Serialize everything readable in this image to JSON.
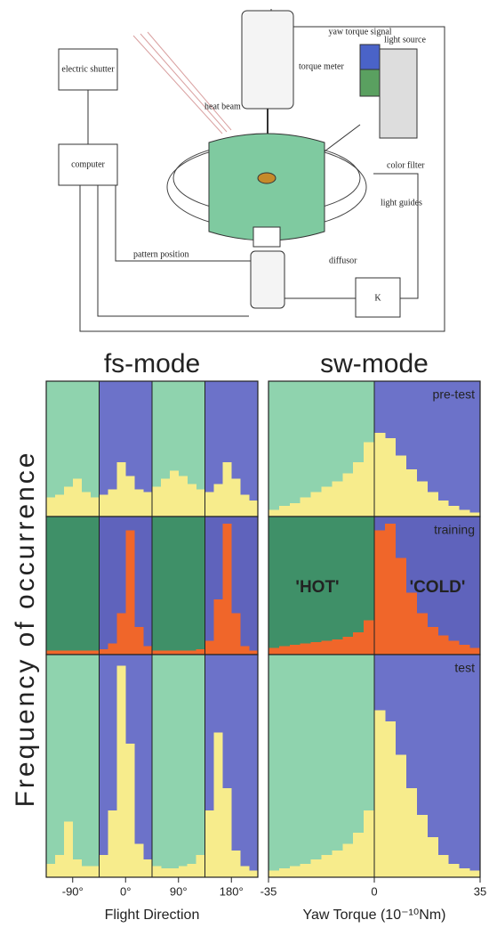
{
  "diagram": {
    "labels": {
      "yaw": "yaw torque signal",
      "torque_meter": "torque meter",
      "light_source": "light source",
      "heat_beam": "heat beam",
      "shutter": "electric shutter",
      "computer": "computer",
      "color_filter": "color filter",
      "light_guides": "light guides",
      "pattern_position": "pattern position",
      "diffusor": "diffusor",
      "k": "K"
    }
  },
  "chart_data": [
    {
      "type": "histogram",
      "title": "fs-mode",
      "ylabel": "Frequency of occurrence",
      "xlabel": "Flight Direction",
      "bins": [
        -135,
        -120,
        -105,
        -90,
        -75,
        -60,
        -45,
        -30,
        -15,
        0,
        15,
        30,
        45,
        60,
        75,
        90,
        105,
        120,
        135,
        150,
        165,
        180,
        195,
        210,
        225
      ],
      "xlim": [
        -135,
        225
      ],
      "ylim": [
        0,
        100
      ],
      "xticks": [
        {
          "value": -90,
          "label": "-90°"
        },
        {
          "value": 0,
          "label": "0°"
        },
        {
          "value": 90,
          "label": "90°"
        },
        {
          "value": 180,
          "label": "180°"
        }
      ],
      "zone_bounds": [
        -135,
        -45,
        45,
        135,
        225
      ],
      "panels": [
        {
          "color": "#f7ec8c",
          "zone_colors": [
            "#8fd3ae",
            "#6c72c9",
            "#8fd3ae",
            "#6c72c9"
          ],
          "values": [
            14,
            16,
            22,
            28,
            18,
            14,
            16,
            20,
            40,
            30,
            20,
            18,
            22,
            28,
            34,
            30,
            24,
            20,
            18,
            24,
            40,
            28,
            16,
            12
          ]
        },
        {
          "color": "#f0662a",
          "zone_colors": [
            "#3f9068",
            "#5f63bc",
            "#3f9068",
            "#5f63bc"
          ],
          "values": [
            3,
            3,
            3,
            3,
            3,
            3,
            4,
            8,
            30,
            90,
            20,
            6,
            3,
            3,
            3,
            3,
            3,
            4,
            10,
            40,
            95,
            30,
            6,
            3
          ]
        },
        {
          "color": "#f7ec8c",
          "zone_colors": [
            "#8fd3ae",
            "#6c72c9",
            "#8fd3ae",
            "#6c72c9"
          ],
          "values": [
            6,
            10,
            25,
            8,
            5,
            5,
            10,
            30,
            95,
            60,
            15,
            8,
            5,
            4,
            4,
            5,
            6,
            10,
            30,
            65,
            40,
            12,
            5,
            3
          ]
        }
      ]
    },
    {
      "type": "histogram",
      "title": "sw-mode",
      "xlabel": "Yaw Torque (10⁻¹⁰Nm)",
      "bins": [
        -35,
        -31.5,
        -28,
        -24.5,
        -21,
        -17.5,
        -14,
        -10.5,
        -7,
        -3.5,
        0,
        3.5,
        7,
        10.5,
        14,
        17.5,
        21,
        24.5,
        28,
        31.5,
        35
      ],
      "xlim": [
        -35,
        35
      ],
      "ylim": [
        0,
        100
      ],
      "xticks": [
        -35,
        0,
        35
      ],
      "zone_bounds": [
        -35,
        0,
        35
      ],
      "panels": [
        {
          "name": "pre-test",
          "color": "#f7ec8c",
          "zone_colors": [
            "#8fd3ae",
            "#6c72c9"
          ],
          "values": [
            5,
            8,
            10,
            14,
            18,
            22,
            26,
            32,
            40,
            55,
            62,
            58,
            45,
            35,
            26,
            18,
            12,
            8,
            5,
            3
          ]
        },
        {
          "name": "training",
          "color": "#f0662a",
          "zone_colors": [
            "#3f9068",
            "#5f63bc"
          ],
          "annotations": [
            "'HOT'",
            "'COLD'"
          ],
          "values": [
            5,
            6,
            7,
            8,
            9,
            10,
            11,
            13,
            16,
            25,
            90,
            95,
            70,
            45,
            30,
            20,
            14,
            10,
            7,
            5
          ]
        },
        {
          "name": "test",
          "color": "#f7ec8c",
          "zone_colors": [
            "#8fd3ae",
            "#6c72c9"
          ],
          "values": [
            3,
            4,
            5,
            6,
            8,
            10,
            12,
            15,
            20,
            30,
            75,
            70,
            55,
            40,
            28,
            18,
            10,
            6,
            4,
            3
          ]
        }
      ]
    }
  ]
}
